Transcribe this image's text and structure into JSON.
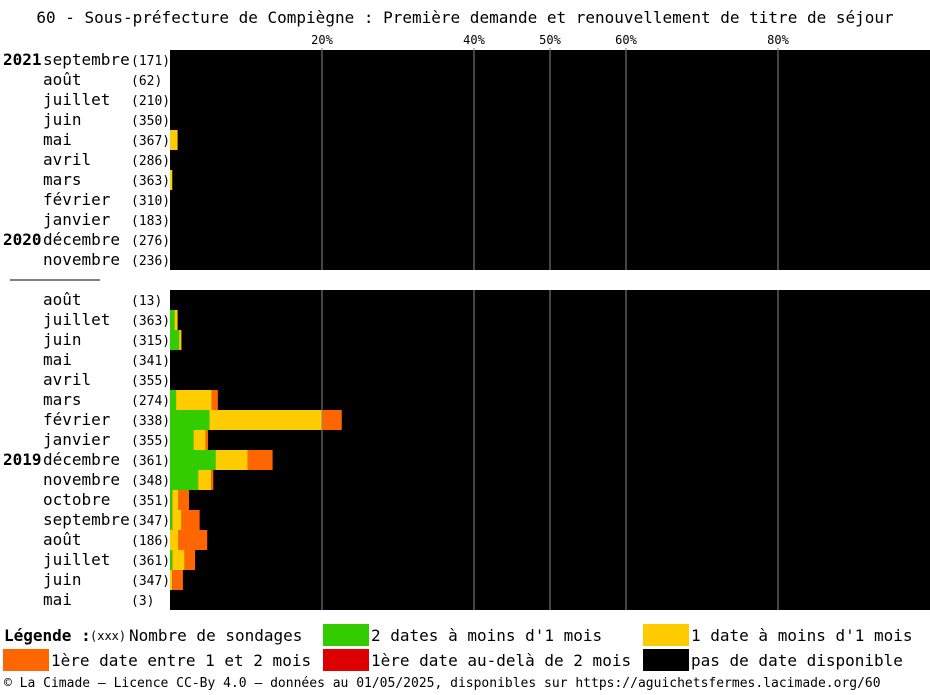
{
  "title": "60 - Sous-préfecture de Compiègne : Première demande et renouvellement de titre de séjour",
  "chart_data": {
    "type": "bar",
    "orientation": "horizontal",
    "stacked": true,
    "x_ticks": [
      "20%",
      "40%",
      "50%",
      "60%",
      "80%"
    ],
    "x_tick_values": [
      20,
      40,
      50,
      60,
      80
    ],
    "xlim": [
      0,
      100
    ],
    "series": [
      {
        "name": "2 dates à moins d'1 mois",
        "color": "#33cc00"
      },
      {
        "name": "1 date à moins d'1 mois",
        "color": "#ffcc00"
      },
      {
        "name": "1ère date entre 1 et 2 mois",
        "color": "#ff6600"
      },
      {
        "name": "1ère date au-delà de 2 mois",
        "color": "#dd0000"
      },
      {
        "name": "pas de date disponible",
        "color": "#000000"
      }
    ],
    "groups": [
      {
        "rows": [
          {
            "year": "2021",
            "month": "septembre",
            "count": "(171)",
            "values": [
              0,
              0,
              0,
              0
            ]
          },
          {
            "year": "",
            "month": "août",
            "count": "(62)",
            "values": [
              0,
              0,
              0,
              0
            ]
          },
          {
            "year": "",
            "month": "juillet",
            "count": "(210)",
            "values": [
              0,
              0,
              0,
              0
            ]
          },
          {
            "year": "",
            "month": "juin",
            "count": "(350)",
            "values": [
              0,
              0,
              0,
              0
            ]
          },
          {
            "year": "",
            "month": "mai",
            "count": "(367)",
            "values": [
              0,
              1.0,
              0,
              0
            ]
          },
          {
            "year": "",
            "month": "avril",
            "count": "(286)",
            "values": [
              0,
              0,
              0,
              0
            ]
          },
          {
            "year": "",
            "month": "mars",
            "count": "(363)",
            "values": [
              0,
              0.3,
              0,
              0
            ]
          },
          {
            "year": "",
            "month": "février",
            "count": "(310)",
            "values": [
              0,
              0,
              0,
              0
            ]
          },
          {
            "year": "",
            "month": "janvier",
            "count": "(183)",
            "values": [
              0,
              0,
              0,
              0
            ]
          },
          {
            "year": "2020",
            "month": "décembre",
            "count": "(276)",
            "values": [
              0,
              0,
              0,
              0
            ]
          },
          {
            "year": "",
            "month": "novembre",
            "count": "(236)",
            "values": [
              0,
              0,
              0,
              0
            ]
          }
        ]
      },
      {
        "rows": [
          {
            "year": "",
            "month": "août",
            "count": "(13)",
            "values": [
              0,
              0,
              0,
              0
            ]
          },
          {
            "year": "",
            "month": "juillet",
            "count": "(363)",
            "values": [
              0.6,
              0.4,
              0,
              0
            ]
          },
          {
            "year": "",
            "month": "juin",
            "count": "(315)",
            "values": [
              1.2,
              0.3,
              0,
              0
            ]
          },
          {
            "year": "",
            "month": "mai",
            "count": "(341)",
            "values": [
              0,
              0,
              0,
              0
            ]
          },
          {
            "year": "",
            "month": "avril",
            "count": "(355)",
            "values": [
              0,
              0,
              0,
              0
            ]
          },
          {
            "year": "",
            "month": "mars",
            "count": "(274)",
            "values": [
              0.8,
              4.7,
              0.8,
              0
            ]
          },
          {
            "year": "",
            "month": "février",
            "count": "(338)",
            "values": [
              5.2,
              14.8,
              2.6,
              0
            ]
          },
          {
            "year": "",
            "month": "janvier",
            "count": "(355)",
            "values": [
              3.1,
              1.6,
              0.3,
              0
            ]
          },
          {
            "year": "2019",
            "month": "décembre",
            "count": "(361)",
            "values": [
              6.0,
              4.2,
              3.3,
              0
            ]
          },
          {
            "year": "",
            "month": "novembre",
            "count": "(348)",
            "values": [
              3.7,
              1.7,
              0.3,
              0
            ]
          },
          {
            "year": "",
            "month": "octobre",
            "count": "(351)",
            "values": [
              0.3,
              0.8,
              1.4,
              0
            ]
          },
          {
            "year": "",
            "month": "septembre",
            "count": "(347)",
            "values": [
              0.3,
              1.2,
              2.4,
              0
            ]
          },
          {
            "year": "",
            "month": "août",
            "count": "(186)",
            "values": [
              0,
              1.1,
              3.8,
              0
            ]
          },
          {
            "year": "",
            "month": "juillet",
            "count": "(361)",
            "values": [
              0.3,
              1.6,
              1.4,
              0
            ]
          },
          {
            "year": "",
            "month": "juin",
            "count": "(347)",
            "values": [
              0,
              0.3,
              1.4,
              0
            ]
          },
          {
            "year": "",
            "month": "mai",
            "count": "(3)",
            "values": [
              0,
              0,
              0,
              0
            ]
          }
        ]
      }
    ]
  },
  "legend": {
    "heading": "Légende :",
    "count_label": "(xxx)",
    "count_desc": "Nombre de sondages",
    "items": [
      {
        "label": "2 dates à moins d'1 mois",
        "color": "#33cc00"
      },
      {
        "label": "1 date à moins d'1 mois",
        "color": "#ffcc00"
      },
      {
        "label": "1ère date entre 1 et 2 mois",
        "color": "#ff6600"
      },
      {
        "label": "1ère date au-delà de 2 mois",
        "color": "#dd0000"
      },
      {
        "label": "pas de date disponible",
        "color": "#000000"
      }
    ]
  },
  "footer": "© La Cimade — Licence CC-By 4.0 — données au 01/05/2025, disponibles sur https://aguichetsfermes.lacimade.org/60"
}
